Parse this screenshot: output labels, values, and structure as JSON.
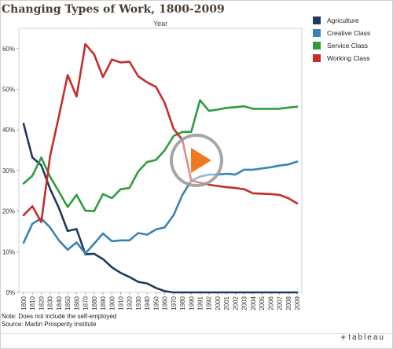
{
  "chart_data": {
    "type": "line",
    "title": "Changing Types of Work, 1800-2009",
    "xlabel": "Year",
    "ylabel": "",
    "ylim": [
      0,
      65
    ],
    "yticks": [
      "0%",
      "10%",
      "20%",
      "30%",
      "40%",
      "50%",
      "60%"
    ],
    "categories": [
      "1800",
      "1810",
      "1820",
      "1830",
      "1840",
      "1850",
      "1860",
      "1870",
      "1880",
      "1890",
      "1900",
      "1910",
      "1920",
      "1930",
      "1940",
      "1950",
      "1960",
      "1970",
      "1980",
      "1990",
      "1991",
      "1992",
      "2000",
      "2001",
      "2002",
      "2003",
      "2004",
      "2005",
      "2006",
      "2007",
      "2008",
      "2009"
    ],
    "series": [
      {
        "name": "Agriculture",
        "color": "#1f3a5f",
        "values": [
          41.5,
          33.2,
          31.3,
          25.5,
          20.8,
          15.1,
          15.6,
          9.4,
          9.5,
          8.2,
          6.2,
          4.8,
          3.8,
          2.6,
          2.2,
          1.1,
          0.3,
          0,
          0,
          0,
          0,
          0,
          0,
          0,
          0,
          0,
          0,
          0,
          0,
          0,
          0,
          0
        ]
      },
      {
        "name": "Creative Class",
        "color": "#3c82b4",
        "values": [
          12.2,
          16.9,
          18.2,
          16.0,
          12.8,
          10.5,
          12.3,
          9.6,
          12.0,
          14.5,
          12.6,
          12.8,
          12.8,
          14.6,
          14.2,
          15.5,
          16.0,
          19.0,
          24.0,
          27.5,
          28.5,
          29.0,
          29.0,
          29.2,
          29.0,
          30.2,
          30.2,
          30.5,
          30.8,
          31.2,
          31.5,
          32.2
        ]
      },
      {
        "name": "Service Class",
        "color": "#2f9c3c",
        "values": [
          26.8,
          28.7,
          33.2,
          28.5,
          24.8,
          21.0,
          24.0,
          20.1,
          20.0,
          24.2,
          23.2,
          25.4,
          25.7,
          29.8,
          32.1,
          32.6,
          35.0,
          38.5,
          39.5,
          39.5,
          47.3,
          44.7,
          45.0,
          45.4,
          45.6,
          45.8,
          45.2,
          45.2,
          45.2,
          45.2,
          45.5,
          45.7
        ]
      },
      {
        "name": "Working Class",
        "color": "#c52d2d",
        "values": [
          19.0,
          21.2,
          17.3,
          33.5,
          43.3,
          53.5,
          48.2,
          61.1,
          58.6,
          53.0,
          57.3,
          56.6,
          56.8,
          53.2,
          51.7,
          50.6,
          46.6,
          40.3,
          37.5,
          27.5,
          27.0,
          26.5,
          26.2,
          25.9,
          25.7,
          25.4,
          24.4,
          24.3,
          24.2,
          24.0,
          23.2,
          21.9
        ]
      }
    ],
    "legend": "right",
    "grid": false
  },
  "notes": {
    "line1": "Note: Does not include the self-employed",
    "line2": "Source: Martin Prosperity Institute"
  },
  "brand": {
    "mark": "+",
    "name": "tableau"
  },
  "overlay": {
    "icon": "play-icon"
  }
}
